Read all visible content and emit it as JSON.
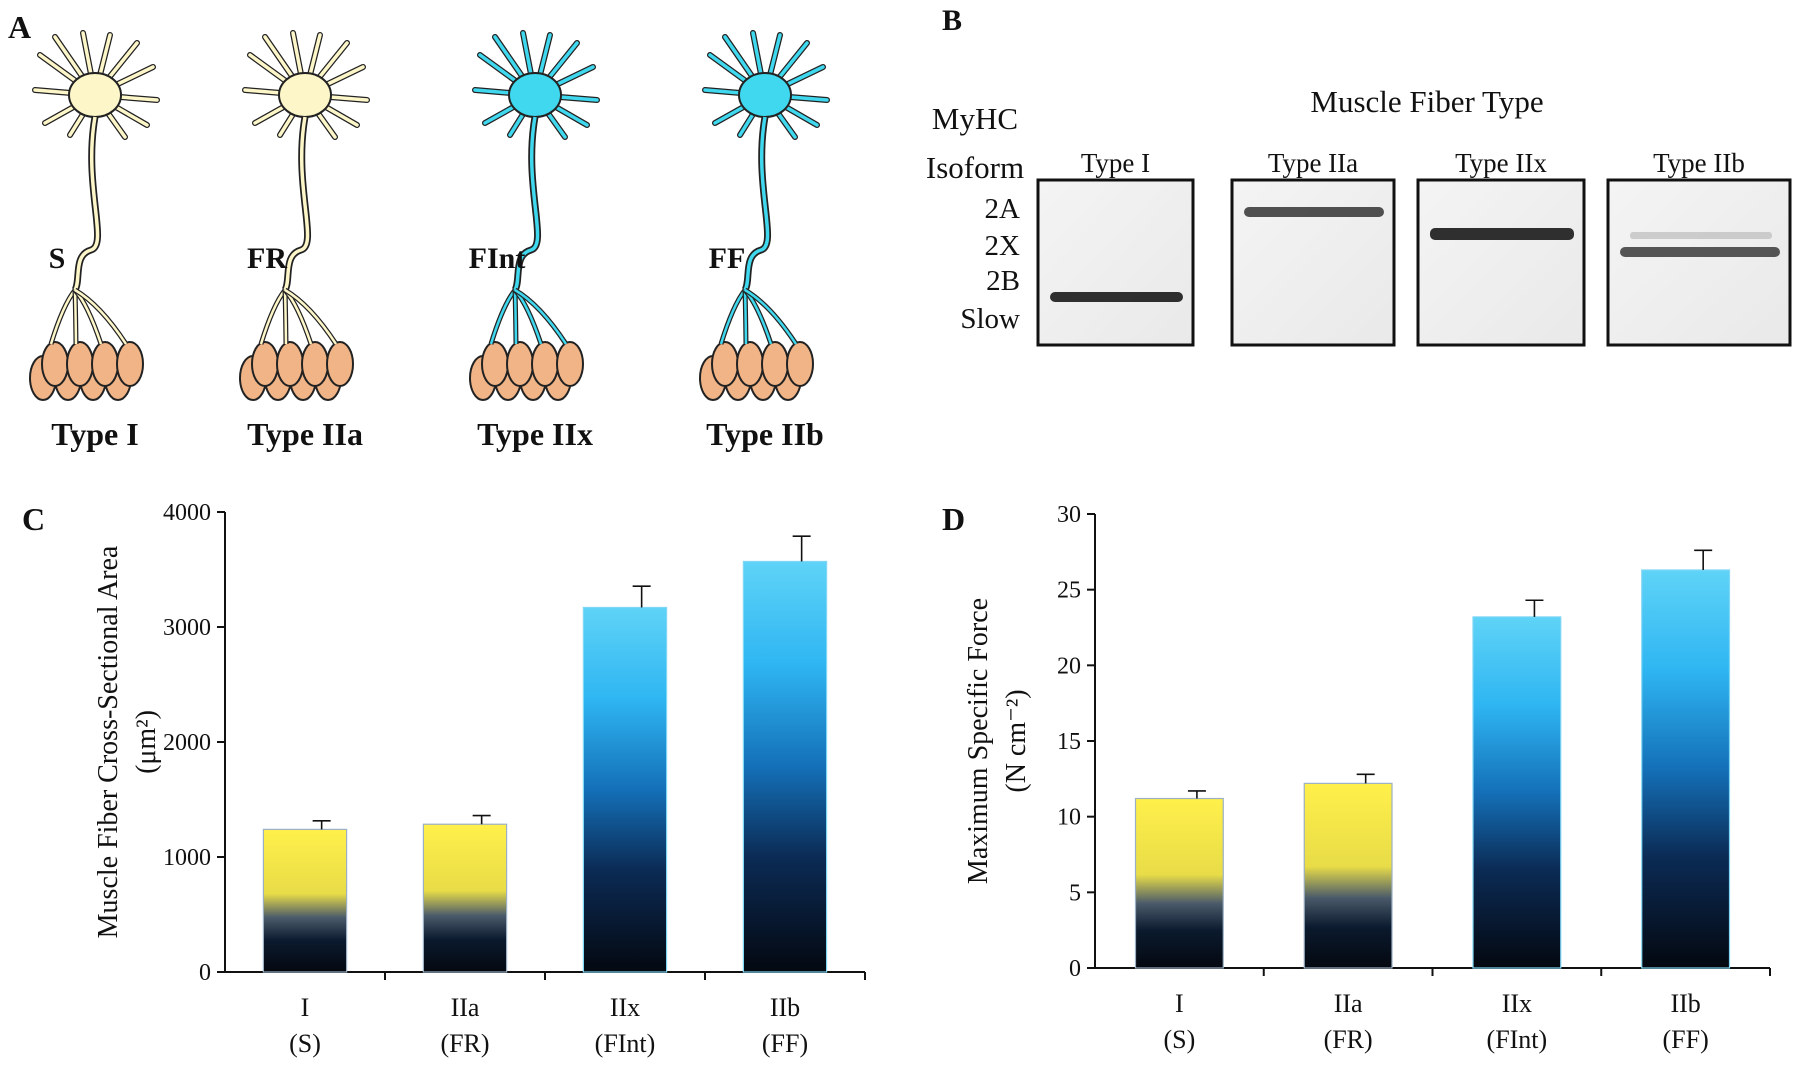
{
  "panel_a": {
    "letter": "A",
    "units": [
      {
        "code": "S",
        "fiber": "Type I",
        "soma_color": "#fdf6c9"
      },
      {
        "code": "FR",
        "fiber": "Type IIa",
        "soma_color": "#fdf6c9"
      },
      {
        "code": "FInt",
        "fiber": "Type IIx",
        "soma_color": "#3fd8ee"
      },
      {
        "code": "FF",
        "fiber": "Type IIb",
        "soma_color": "#3fd8ee"
      }
    ],
    "muscle_color": "#f0b487"
  },
  "panel_b": {
    "letter": "B",
    "title": "Muscle Fiber Type",
    "isoform_label_1": "MyHC",
    "isoform_label_2": "Isoform",
    "row_labels": [
      "2A",
      "2X",
      "2B",
      "Slow"
    ],
    "lanes": [
      {
        "label": "Type I",
        "band": "Slow"
      },
      {
        "label": "Type IIa",
        "band": "2A"
      },
      {
        "label": "Type IIx",
        "band": "2X"
      },
      {
        "label": "Type IIb",
        "band": "2B"
      }
    ]
  },
  "chart_data": [
    {
      "letter": "C",
      "type": "bar",
      "categories": [
        "I",
        "IIa",
        "IIx",
        "IIb"
      ],
      "subcategories": [
        "(S)",
        "(FR)",
        "(FInt)",
        "(FF)"
      ],
      "values": [
        1240,
        1285,
        3170,
        3570
      ],
      "errors": [
        75,
        75,
        185,
        220
      ],
      "ylabel_line1": "Muscle Fiber Cross-Sectional Area",
      "ylabel_line2": "(μm²)",
      "ylim": [
        0,
        4000
      ],
      "yticks": [
        0,
        1000,
        2000,
        3000,
        4000
      ]
    },
    {
      "letter": "D",
      "type": "bar",
      "categories": [
        "I",
        "IIa",
        "IIx",
        "IIb"
      ],
      "subcategories": [
        "(S)",
        "(FR)",
        "(FInt)",
        "(FF)"
      ],
      "values": [
        11.2,
        12.2,
        23.2,
        26.3
      ],
      "errors": [
        0.5,
        0.6,
        1.1,
        1.3
      ],
      "ylabel_line1": "Maximum Specific Force",
      "ylabel_line2": "(N cm⁻²)",
      "ylim": [
        0,
        30
      ],
      "yticks": [
        0,
        5,
        10,
        15,
        20,
        25,
        30
      ]
    }
  ],
  "colors": {
    "slow_top": "#fff04a",
    "slow_mid": "#e8dc48",
    "fast_top": "#5fd3f7",
    "fast_mid": "#1e9ce0",
    "bar_bottom": "#040810"
  }
}
